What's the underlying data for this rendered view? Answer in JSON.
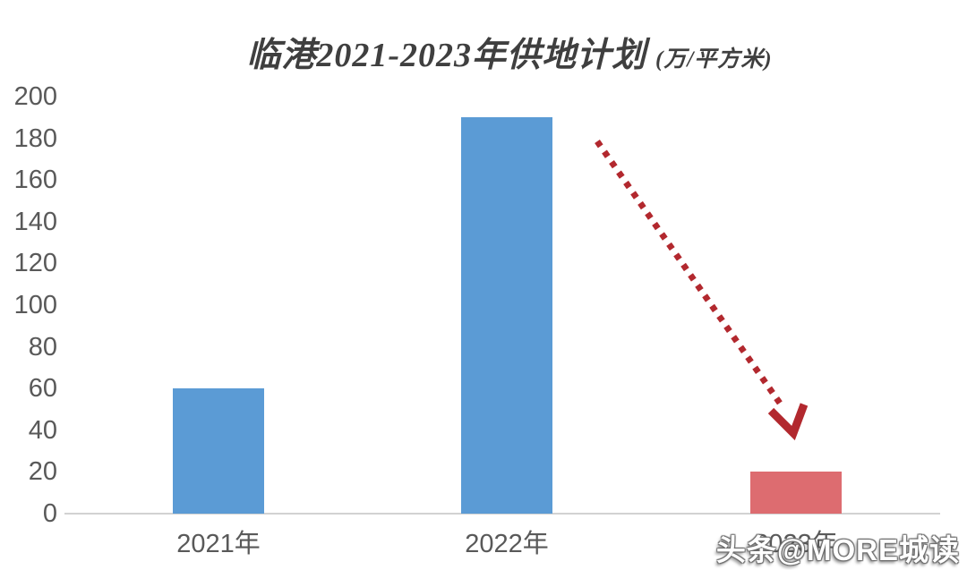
{
  "watermark": "头条@MORE城读",
  "colors": {
    "bar_blue": "#5B9BD5",
    "bar_red": "#DD6C70",
    "arrow_red": "#B2282E",
    "axis_line": "#D2D2D2",
    "tick_text": "#595959",
    "title_text": "#3F3F3F"
  },
  "chart_data": {
    "type": "bar",
    "title": "临港2021-2023年供地计划",
    "unit_label": "(万/平方米)",
    "categories": [
      "2021年",
      "2022年",
      "2023年"
    ],
    "values": [
      60,
      190,
      20
    ],
    "bar_colors": [
      "#5B9BD5",
      "#5B9BD5",
      "#DD6C70"
    ],
    "xlabel": "",
    "ylabel": "",
    "ylim": [
      0,
      200
    ],
    "ytick_step": 20,
    "yticks": [
      0,
      20,
      40,
      60,
      80,
      100,
      120,
      140,
      160,
      180,
      200
    ],
    "grid": false,
    "legend": false,
    "annotation": {
      "type": "arrow",
      "style": "dotted",
      "color": "#B2282E",
      "from": "right of 2022 bar top",
      "to": "above 2023 bar"
    }
  }
}
